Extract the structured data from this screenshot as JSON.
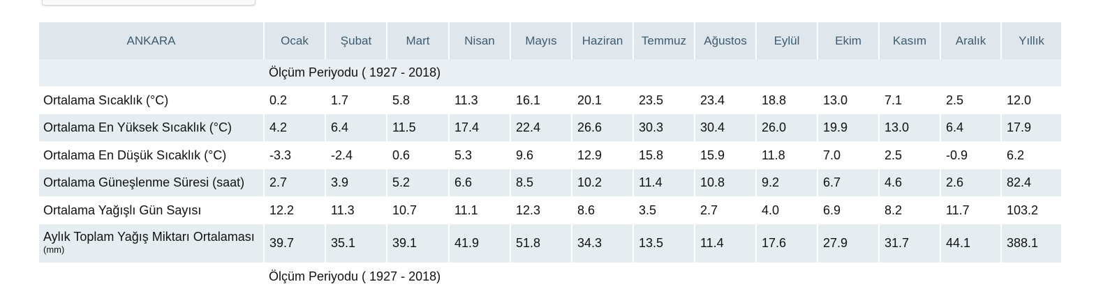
{
  "table": {
    "station": "ANKARA",
    "months": [
      "Ocak",
      "Şubat",
      "Mart",
      "Nisan",
      "Mayıs",
      "Haziran",
      "Temmuz",
      "Ağustos",
      "Eylül",
      "Ekim",
      "Kasım",
      "Aralık",
      "Yıllık"
    ],
    "period_label": "Ölçüm Periyodu ( 1927 - 2018)",
    "rows": [
      {
        "label": "Ortalama Sıcaklık (°C)",
        "values": [
          "0.2",
          "1.7",
          "5.8",
          "11.3",
          "16.1",
          "20.1",
          "23.5",
          "23.4",
          "18.8",
          "13.0",
          "7.1",
          "2.5",
          "12.0"
        ]
      },
      {
        "label": "Ortalama En Yüksek Sıcaklık (°C)",
        "values": [
          "4.2",
          "6.4",
          "11.5",
          "17.4",
          "22.4",
          "26.6",
          "30.3",
          "30.4",
          "26.0",
          "19.9",
          "13.0",
          "6.4",
          "17.9"
        ]
      },
      {
        "label": "Ortalama En Düşük Sıcaklık (°C)",
        "values": [
          "-3.3",
          "-2.4",
          "0.6",
          "5.3",
          "9.6",
          "12.9",
          "15.8",
          "15.9",
          "11.8",
          "7.0",
          "2.5",
          "-0.9",
          "6.2"
        ]
      },
      {
        "label": "Ortalama Güneşlenme Süresi (saat)",
        "values": [
          "2.7",
          "3.9",
          "5.2",
          "6.6",
          "8.5",
          "10.2",
          "11.4",
          "10.8",
          "9.2",
          "6.7",
          "4.6",
          "2.6",
          "82.4"
        ]
      },
      {
        "label": "Ortalama Yağışlı Gün Sayısı",
        "values": [
          "12.2",
          "11.3",
          "10.7",
          "11.1",
          "12.3",
          "8.6",
          "3.5",
          "2.7",
          "4.0",
          "6.9",
          "8.2",
          "11.7",
          "103.2"
        ]
      },
      {
        "label": "Aylık Toplam Yağış Miktarı Ortalaması",
        "unit": "(mm)",
        "values": [
          "39.7",
          "35.1",
          "39.1",
          "41.9",
          "51.8",
          "34.3",
          "13.5",
          "11.4",
          "17.6",
          "27.9",
          "31.7",
          "44.1",
          "388.1"
        ]
      }
    ]
  }
}
